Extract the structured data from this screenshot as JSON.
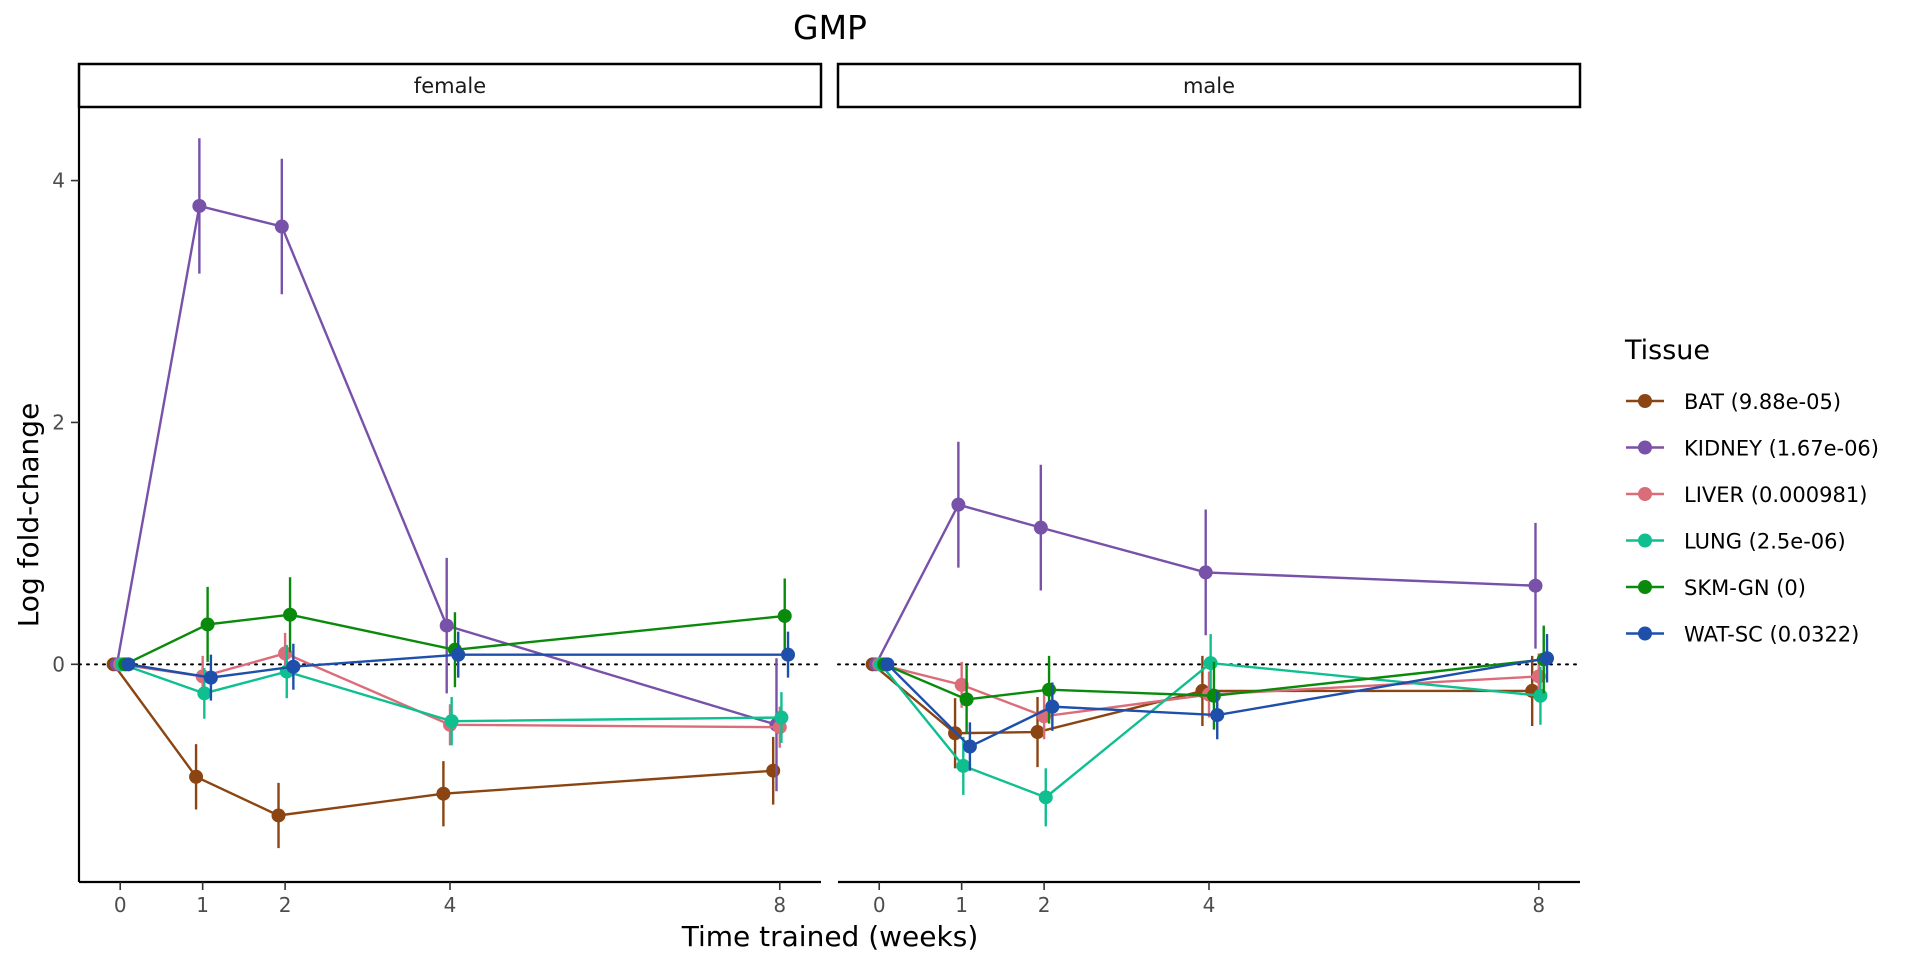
{
  "chart_data": {
    "type": "line",
    "title": "GMP",
    "xlabel": "Time trained (weeks)",
    "ylabel": "Log fold-change",
    "x_ticks": [
      0,
      1,
      2,
      4,
      8
    ],
    "y_ticks": [
      0,
      2,
      4
    ],
    "xlim": [
      -0.5,
      8.5
    ],
    "ylim": [
      -1.8,
      4.6
    ],
    "reference_line_y": 0,
    "grid": false,
    "legend": {
      "title": "Tissue",
      "position": "right"
    },
    "panels": [
      {
        "label": "female",
        "series": [
          {
            "name": "BAT (9.88e-05)",
            "color": "#8B4513",
            "x": [
              0,
              1,
              2,
              4,
              8
            ],
            "y": [
              0,
              -0.93,
              -1.25,
              -1.07,
              -0.88
            ],
            "err": [
              0,
              0.27,
              0.27,
              0.27,
              0.28
            ]
          },
          {
            "name": "KIDNEY (1.67e-06)",
            "color": "#7851A9",
            "x": [
              0,
              1,
              2,
              4,
              8
            ],
            "y": [
              0,
              3.79,
              3.62,
              0.32,
              -0.5
            ],
            "err": [
              0,
              0.56,
              0.56,
              0.56,
              0.55
            ]
          },
          {
            "name": "LIVER (0.000981)",
            "color": "#DB6D7A",
            "x": [
              0,
              1,
              2,
              4,
              8
            ],
            "y": [
              0,
              -0.1,
              0.09,
              -0.5,
              -0.52
            ],
            "err": [
              0,
              0.17,
              0.17,
              0.17,
              0.17
            ]
          },
          {
            "name": "LUNG (2.5e-06)",
            "color": "#0FBF8F",
            "x": [
              0,
              1,
              2,
              4,
              8
            ],
            "y": [
              0,
              -0.24,
              -0.06,
              -0.47,
              -0.44
            ],
            "err": [
              0,
              0.21,
              0.22,
              0.2,
              0.21
            ]
          },
          {
            "name": "SKM-GN (0)",
            "color": "#0A8A0A",
            "x": [
              0,
              1,
              2,
              4,
              8
            ],
            "y": [
              0,
              0.33,
              0.41,
              0.12,
              0.4
            ],
            "err": [
              0,
              0.31,
              0.31,
              0.31,
              0.31
            ]
          },
          {
            "name": "WAT-SC (0.0322)",
            "color": "#1E4FAA",
            "x": [
              0,
              1,
              2,
              4,
              8
            ],
            "y": [
              0,
              -0.11,
              -0.02,
              0.08,
              0.08
            ],
            "err": [
              0,
              0.19,
              0.19,
              0.19,
              0.19
            ]
          }
        ]
      },
      {
        "label": "male",
        "series": [
          {
            "name": "BAT (9.88e-05)",
            "color": "#8B4513",
            "x": [
              0,
              1,
              2,
              4,
              8
            ],
            "y": [
              0,
              -0.57,
              -0.56,
              -0.22,
              -0.22
            ],
            "err": [
              0,
              0.29,
              0.29,
              0.29,
              0.29
            ]
          },
          {
            "name": "KIDNEY (1.67e-06)",
            "color": "#7851A9",
            "x": [
              0,
              1,
              2,
              4,
              8
            ],
            "y": [
              0,
              1.32,
              1.13,
              0.76,
              0.65
            ],
            "err": [
              0,
              0.52,
              0.52,
              0.52,
              0.52
            ]
          },
          {
            "name": "LIVER (0.000981)",
            "color": "#DB6D7A",
            "x": [
              0,
              1,
              2,
              4,
              8
            ],
            "y": [
              0,
              -0.17,
              -0.43,
              -0.25,
              -0.1
            ],
            "err": [
              0,
              0.19,
              0.19,
              0.19,
              0.19
            ]
          },
          {
            "name": "LUNG (2.5e-06)",
            "color": "#0FBF8F",
            "x": [
              0,
              1,
              2,
              4,
              8
            ],
            "y": [
              0,
              -0.84,
              -1.1,
              0.01,
              -0.26
            ],
            "err": [
              0,
              0.24,
              0.24,
              0.24,
              0.24
            ]
          },
          {
            "name": "SKM-GN (0)",
            "color": "#0A8A0A",
            "x": [
              0,
              1,
              2,
              4,
              8
            ],
            "y": [
              0,
              -0.29,
              -0.21,
              -0.26,
              0.04
            ],
            "err": [
              0,
              0.28,
              0.28,
              0.28,
              0.28
            ]
          },
          {
            "name": "WAT-SC (0.0322)",
            "color": "#1E4FAA",
            "x": [
              0,
              1,
              2,
              4,
              8
            ],
            "y": [
              0,
              -0.68,
              -0.35,
              -0.42,
              0.05
            ],
            "err": [
              0,
              0.2,
              0.2,
              0.2,
              0.2
            ]
          }
        ]
      }
    ]
  }
}
